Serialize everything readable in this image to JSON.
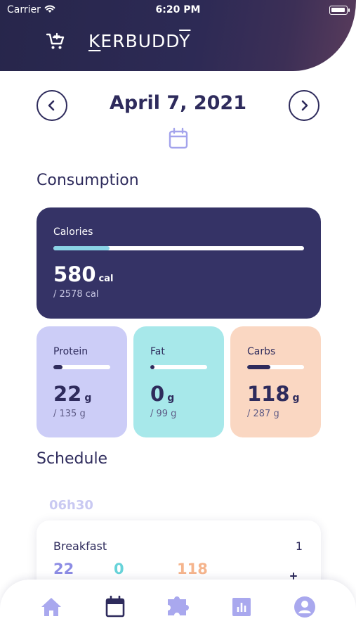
{
  "status": {
    "carrier": "Carrier",
    "time": "6:20 PM"
  },
  "header": {
    "brand_first": "K",
    "brand_middle": "ERBUDD",
    "brand_last": "Y"
  },
  "date": {
    "label": "April 7, 2021"
  },
  "consumption": {
    "title": "Consumption",
    "calories": {
      "label": "Calories",
      "value": "580",
      "unit": "cal",
      "goal": "/ 2578 cal",
      "progress": 0.225
    },
    "protein": {
      "label": "Protein",
      "value": "22",
      "unit": "g",
      "goal": "/ 135 g",
      "progress": 0.16
    },
    "fat": {
      "label": "Fat",
      "value": "0",
      "unit": "g",
      "goal": "/ 99 g",
      "progress": 0.0
    },
    "carbs": {
      "label": "Carbs",
      "value": "118",
      "unit": "g",
      "goal": "/ 287 g",
      "progress": 0.41
    }
  },
  "schedule": {
    "title": "Schedule",
    "time": "06h30",
    "meal": {
      "name": "Breakfast",
      "count": "1",
      "protein": "22",
      "fat": "0",
      "carbs": "118"
    }
  },
  "tabs": [
    "home-icon",
    "calendar-icon",
    "puzzle-icon",
    "stats-icon",
    "profile-icon"
  ],
  "colors": {
    "primary": "#2e2b5c",
    "card_dark": "#353366",
    "protein": "#cccdf7",
    "fat": "#a7e8ea",
    "carbs": "#fad7c2",
    "tab_icon": "#a9a8ee"
  }
}
